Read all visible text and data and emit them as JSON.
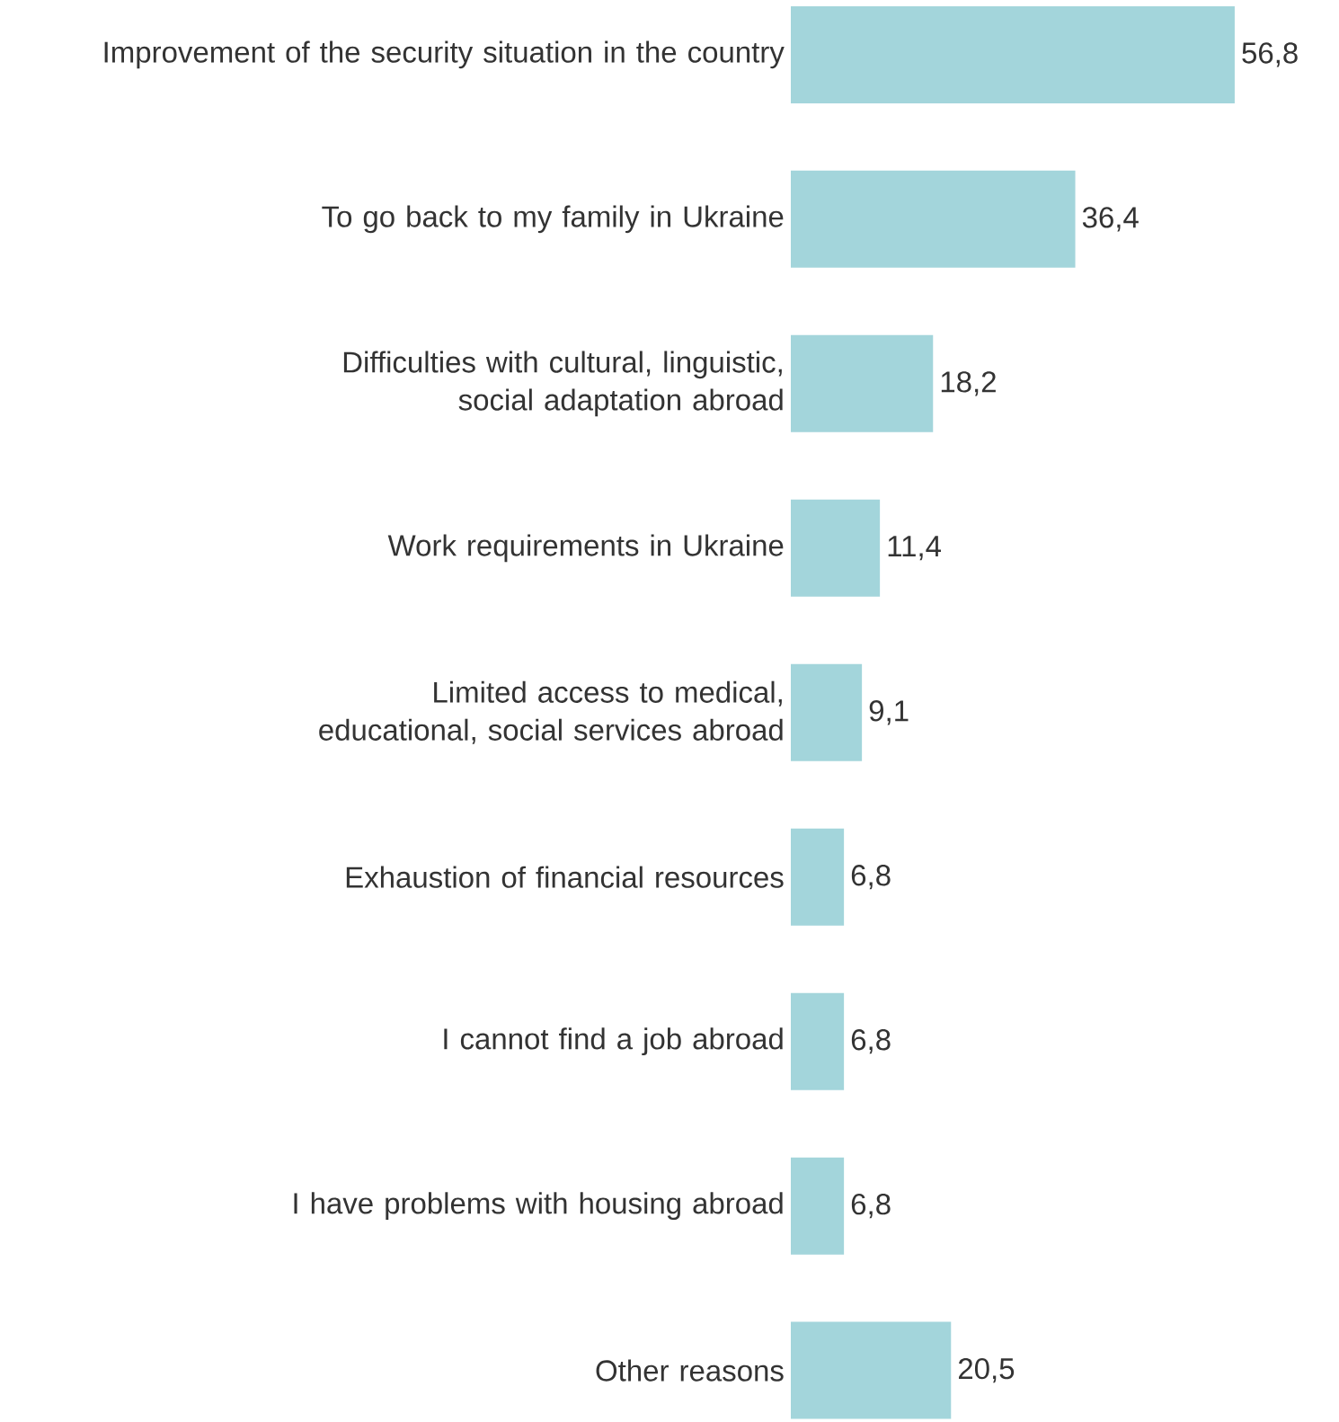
{
  "chart_data": {
    "type": "bar",
    "orientation": "horizontal",
    "categories": [
      "Improvement of the security situation in the country",
      "To go back to my family in Ukraine",
      "Difficulties with cultural, linguistic, social adaptation abroad",
      "Work requirements in Ukraine",
      "Limited access to medical, educational, social services abroad",
      "Exhaustion of financial resources",
      "I cannot find a job abroad",
      "I have problems with housing abroad",
      "Other reasons"
    ],
    "values": [
      56.8,
      36.4,
      18.2,
      11.4,
      9.1,
      6.8,
      6.8,
      6.8,
      20.5
    ],
    "value_labels": [
      "56,8",
      "36,4",
      "18,2",
      "11,4",
      "9,1",
      "6,8",
      "6,8",
      "6,8",
      "20,5"
    ],
    "color": "#a3d5db"
  }
}
